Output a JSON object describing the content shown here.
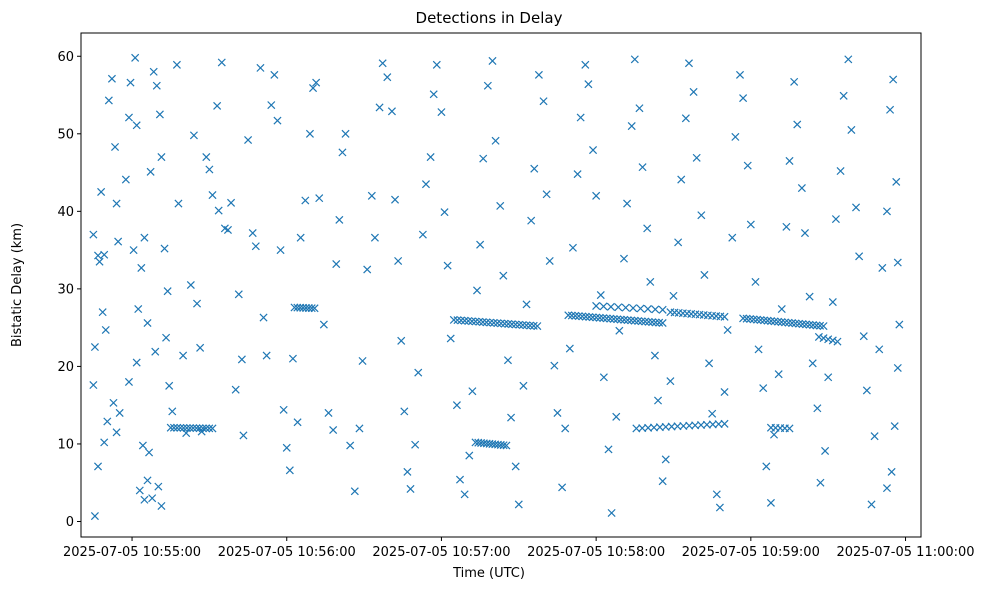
{
  "chart_data": {
    "type": "scatter",
    "title": "Detections in Delay",
    "xlabel": "Time (UTC)",
    "ylabel": "Bistatic Delay (km)",
    "x_unit": "minutes since 2025-07-05 10:55:00 UTC",
    "xlim": [
      -0.33,
      5.1
    ],
    "ylim": [
      -2.0,
      63.0
    ],
    "grid": false,
    "marker": "x",
    "color": "#1f77b4",
    "xticks": [
      {
        "value": 0,
        "label": "2025-07-05 10:55:00"
      },
      {
        "value": 1,
        "label": "2025-07-05 10:56:00"
      },
      {
        "value": 2,
        "label": "2025-07-05 10:57:00"
      },
      {
        "value": 3,
        "label": "2025-07-05 10:58:00"
      },
      {
        "value": 4,
        "label": "2025-07-05 10:59:00"
      },
      {
        "value": 5,
        "label": "2025-07-05 11:00:00"
      }
    ],
    "yticks": [
      {
        "value": 0,
        "label": "0"
      },
      {
        "value": 10,
        "label": "10"
      },
      {
        "value": 20,
        "label": "20"
      },
      {
        "value": 30,
        "label": "30"
      },
      {
        "value": 40,
        "label": "40"
      },
      {
        "value": 50,
        "label": "50"
      },
      {
        "value": 60,
        "label": "60"
      }
    ],
    "track_segments": [
      {
        "x_start": 0.25,
        "x_end": 0.52,
        "y_start": 12.1,
        "y_end": 12.0,
        "count": 14
      },
      {
        "x_start": 1.05,
        "x_end": 1.18,
        "y_start": 27.6,
        "y_end": 27.5,
        "count": 8
      },
      {
        "x_start": 2.08,
        "x_end": 2.62,
        "y_start": 26.0,
        "y_end": 25.2,
        "count": 24
      },
      {
        "x_start": 2.22,
        "x_end": 2.42,
        "y_start": 10.2,
        "y_end": 9.8,
        "count": 12
      },
      {
        "x_start": 2.82,
        "x_end": 3.43,
        "y_start": 26.6,
        "y_end": 25.6,
        "count": 28
      },
      {
        "x_start": 3.0,
        "x_end": 3.43,
        "y_start": 27.8,
        "y_end": 27.3,
        "count": 10
      },
      {
        "x_start": 3.48,
        "x_end": 3.83,
        "y_start": 27.0,
        "y_end": 26.4,
        "count": 14
      },
      {
        "x_start": 3.26,
        "x_end": 3.83,
        "y_start": 12.0,
        "y_end": 12.6,
        "count": 16
      },
      {
        "x_start": 3.95,
        "x_end": 4.47,
        "y_start": 26.2,
        "y_end": 25.2,
        "count": 24
      },
      {
        "x_start": 4.44,
        "x_end": 4.56,
        "y_start": 23.8,
        "y_end": 23.2,
        "count": 5
      },
      {
        "x_start": 4.13,
        "x_end": 4.25,
        "y_start": 12.1,
        "y_end": 12.0,
        "count": 5
      }
    ],
    "points": [
      [
        -0.25,
        37.0
      ],
      [
        -0.24,
        22.5
      ],
      [
        -0.25,
        17.6
      ],
      [
        -0.22,
        34.3
      ],
      [
        -0.22,
        7.1
      ],
      [
        -0.2,
        42.5
      ],
      [
        -0.18,
        34.4
      ],
      [
        -0.17,
        24.7
      ],
      [
        -0.18,
        10.2
      ],
      [
        -0.15,
        54.3
      ],
      [
        -0.13,
        57.1
      ],
      [
        -0.11,
        48.3
      ],
      [
        -0.1,
        41.0
      ],
      [
        -0.09,
        36.1
      ],
      [
        -0.12,
        15.3
      ],
      [
        -0.1,
        11.5
      ],
      [
        -0.08,
        14.0
      ],
      [
        -0.24,
        0.7
      ],
      [
        -0.21,
        33.5
      ],
      [
        -0.19,
        27.0
      ],
      [
        -0.16,
        12.9
      ],
      [
        -0.04,
        44.1
      ],
      [
        -0.02,
        52.1
      ],
      [
        -0.01,
        56.6
      ],
      [
        0.02,
        59.8
      ],
      [
        0.03,
        51.1
      ],
      [
        0.01,
        35.0
      ],
      [
        0.04,
        27.4
      ],
      [
        0.06,
        32.7
      ],
      [
        0.08,
        36.6
      ],
      [
        0.1,
        25.6
      ],
      [
        0.12,
        45.1
      ],
      [
        0.14,
        58.0
      ],
      [
        0.16,
        56.2
      ],
      [
        0.18,
        52.5
      ],
      [
        0.19,
        47.0
      ],
      [
        0.21,
        35.2
      ],
      [
        0.23,
        29.7
      ],
      [
        0.22,
        23.7
      ],
      [
        0.24,
        17.5
      ],
      [
        0.26,
        14.2
      ],
      [
        0.05,
        4.0
      ],
      [
        0.08,
        2.8
      ],
      [
        0.1,
        5.3
      ],
      [
        0.13,
        3.0
      ],
      [
        0.17,
        4.5
      ],
      [
        0.19,
        2.0
      ],
      [
        -0.02,
        18.0
      ],
      [
        0.03,
        20.5
      ],
      [
        0.07,
        9.8
      ],
      [
        0.11,
        8.9
      ],
      [
        0.15,
        21.9
      ],
      [
        0.29,
        58.9
      ],
      [
        0.3,
        41.0
      ],
      [
        0.33,
        21.4
      ],
      [
        0.35,
        11.4
      ],
      [
        0.38,
        30.5
      ],
      [
        0.4,
        49.8
      ],
      [
        0.42,
        28.1
      ],
      [
        0.44,
        22.4
      ],
      [
        0.45,
        11.6
      ],
      [
        0.48,
        47.0
      ],
      [
        0.5,
        45.4
      ],
      [
        0.52,
        42.1
      ],
      [
        0.55,
        53.6
      ],
      [
        0.56,
        40.1
      ],
      [
        0.58,
        59.2
      ],
      [
        0.6,
        37.8
      ],
      [
        0.62,
        37.6
      ],
      [
        0.64,
        41.1
      ],
      [
        0.67,
        17.0
      ],
      [
        0.69,
        29.3
      ],
      [
        0.71,
        20.9
      ],
      [
        0.72,
        11.1
      ],
      [
        0.75,
        49.2
      ],
      [
        0.78,
        37.2
      ],
      [
        0.8,
        35.5
      ],
      [
        0.83,
        58.5
      ],
      [
        0.85,
        26.3
      ],
      [
        0.87,
        21.4
      ],
      [
        0.9,
        53.7
      ],
      [
        0.92,
        57.6
      ],
      [
        0.94,
        51.7
      ],
      [
        0.96,
        35.0
      ],
      [
        0.98,
        14.4
      ],
      [
        1.0,
        9.5
      ],
      [
        1.02,
        6.6
      ],
      [
        1.04,
        21.0
      ],
      [
        1.07,
        12.8
      ],
      [
        1.09,
        36.6
      ],
      [
        1.12,
        41.4
      ],
      [
        1.15,
        50.0
      ],
      [
        1.17,
        55.9
      ],
      [
        1.19,
        56.6
      ],
      [
        1.21,
        41.7
      ],
      [
        1.24,
        25.4
      ],
      [
        1.27,
        14.0
      ],
      [
        1.3,
        11.8
      ],
      [
        1.32,
        33.2
      ],
      [
        1.34,
        38.9
      ],
      [
        1.36,
        47.6
      ],
      [
        1.38,
        50.0
      ],
      [
        1.41,
        9.8
      ],
      [
        1.44,
        3.9
      ],
      [
        1.47,
        12.0
      ],
      [
        1.49,
        20.7
      ],
      [
        1.52,
        32.5
      ],
      [
        1.55,
        42.0
      ],
      [
        1.57,
        36.6
      ],
      [
        1.6,
        53.4
      ],
      [
        1.62,
        59.1
      ],
      [
        1.65,
        57.3
      ],
      [
        1.68,
        52.9
      ],
      [
        1.7,
        41.5
      ],
      [
        1.72,
        33.6
      ],
      [
        1.74,
        23.3
      ],
      [
        1.76,
        14.2
      ],
      [
        1.78,
        6.4
      ],
      [
        1.8,
        4.2
      ],
      [
        1.83,
        9.9
      ],
      [
        1.85,
        19.2
      ],
      [
        1.88,
        37.0
      ],
      [
        1.9,
        43.5
      ],
      [
        1.93,
        47.0
      ],
      [
        1.95,
        55.1
      ],
      [
        1.97,
        58.9
      ],
      [
        2.0,
        52.8
      ],
      [
        2.02,
        39.9
      ],
      [
        2.04,
        33.0
      ],
      [
        2.06,
        23.6
      ],
      [
        2.1,
        15.0
      ],
      [
        2.12,
        5.4
      ],
      [
        2.15,
        3.5
      ],
      [
        2.18,
        8.5
      ],
      [
        2.2,
        16.8
      ],
      [
        2.23,
        29.8
      ],
      [
        2.25,
        35.7
      ],
      [
        2.27,
        46.8
      ],
      [
        2.3,
        56.2
      ],
      [
        2.33,
        59.4
      ],
      [
        2.35,
        49.1
      ],
      [
        2.38,
        40.7
      ],
      [
        2.4,
        31.7
      ],
      [
        2.43,
        20.8
      ],
      [
        2.45,
        13.4
      ],
      [
        2.48,
        7.1
      ],
      [
        2.5,
        2.2
      ],
      [
        2.53,
        17.5
      ],
      [
        2.55,
        28.0
      ],
      [
        2.58,
        38.8
      ],
      [
        2.6,
        45.5
      ],
      [
        2.63,
        57.6
      ],
      [
        2.66,
        54.2
      ],
      [
        2.68,
        42.2
      ],
      [
        2.7,
        33.6
      ],
      [
        2.73,
        20.1
      ],
      [
        2.75,
        14.0
      ],
      [
        2.78,
        4.4
      ],
      [
        2.8,
        12.0
      ],
      [
        2.83,
        22.3
      ],
      [
        2.85,
        35.3
      ],
      [
        2.88,
        44.8
      ],
      [
        2.9,
        52.1
      ],
      [
        2.93,
        58.9
      ],
      [
        2.95,
        56.4
      ],
      [
        2.98,
        47.9
      ],
      [
        3.0,
        42.0
      ],
      [
        3.03,
        29.2
      ],
      [
        3.05,
        18.6
      ],
      [
        3.08,
        9.3
      ],
      [
        3.1,
        1.1
      ],
      [
        3.13,
        13.5
      ],
      [
        3.15,
        24.6
      ],
      [
        3.18,
        33.9
      ],
      [
        3.2,
        41.0
      ],
      [
        3.23,
        51.0
      ],
      [
        3.25,
        59.6
      ],
      [
        3.28,
        53.3
      ],
      [
        3.3,
        45.7
      ],
      [
        3.33,
        37.8
      ],
      [
        3.35,
        30.9
      ],
      [
        3.38,
        21.4
      ],
      [
        3.4,
        15.6
      ],
      [
        3.43,
        5.2
      ],
      [
        3.45,
        8.0
      ],
      [
        3.48,
        18.1
      ],
      [
        3.5,
        29.1
      ],
      [
        3.53,
        36.0
      ],
      [
        3.55,
        44.1
      ],
      [
        3.58,
        52.0
      ],
      [
        3.6,
        59.1
      ],
      [
        3.63,
        55.4
      ],
      [
        3.65,
        46.9
      ],
      [
        3.68,
        39.5
      ],
      [
        3.7,
        31.8
      ],
      [
        3.73,
        20.4
      ],
      [
        3.75,
        13.9
      ],
      [
        3.78,
        3.5
      ],
      [
        3.8,
        1.8
      ],
      [
        3.83,
        16.7
      ],
      [
        3.85,
        24.7
      ],
      [
        3.88,
        36.6
      ],
      [
        3.9,
        49.6
      ],
      [
        3.93,
        57.6
      ],
      [
        3.95,
        54.6
      ],
      [
        3.98,
        45.9
      ],
      [
        4.0,
        38.3
      ],
      [
        4.03,
        30.9
      ],
      [
        4.05,
        22.2
      ],
      [
        4.08,
        17.2
      ],
      [
        4.1,
        7.1
      ],
      [
        4.13,
        2.4
      ],
      [
        4.15,
        11.2
      ],
      [
        4.18,
        19.0
      ],
      [
        4.2,
        27.4
      ],
      [
        4.23,
        38.0
      ],
      [
        4.25,
        46.5
      ],
      [
        4.28,
        56.7
      ],
      [
        4.3,
        51.2
      ],
      [
        4.33,
        43.0
      ],
      [
        4.35,
        37.2
      ],
      [
        4.38,
        29.0
      ],
      [
        4.4,
        20.4
      ],
      [
        4.43,
        14.6
      ],
      [
        4.45,
        5.0
      ],
      [
        4.48,
        9.1
      ],
      [
        4.5,
        18.6
      ],
      [
        4.53,
        28.3
      ],
      [
        4.55,
        39.0
      ],
      [
        4.58,
        45.2
      ],
      [
        4.6,
        54.9
      ],
      [
        4.63,
        59.6
      ],
      [
        4.65,
        50.5
      ],
      [
        4.68,
        40.5
      ],
      [
        4.7,
        34.2
      ],
      [
        4.73,
        23.9
      ],
      [
        4.75,
        16.9
      ],
      [
        4.78,
        2.2
      ],
      [
        4.8,
        11.0
      ],
      [
        4.83,
        22.2
      ],
      [
        4.85,
        32.7
      ],
      [
        4.88,
        40.0
      ],
      [
        4.9,
        53.1
      ],
      [
        4.92,
        57.0
      ],
      [
        4.94,
        43.8
      ],
      [
        4.95,
        33.4
      ],
      [
        4.96,
        25.4
      ],
      [
        4.95,
        19.8
      ],
      [
        4.93,
        12.3
      ],
      [
        4.91,
        6.4
      ],
      [
        4.88,
        4.3
      ]
    ]
  }
}
